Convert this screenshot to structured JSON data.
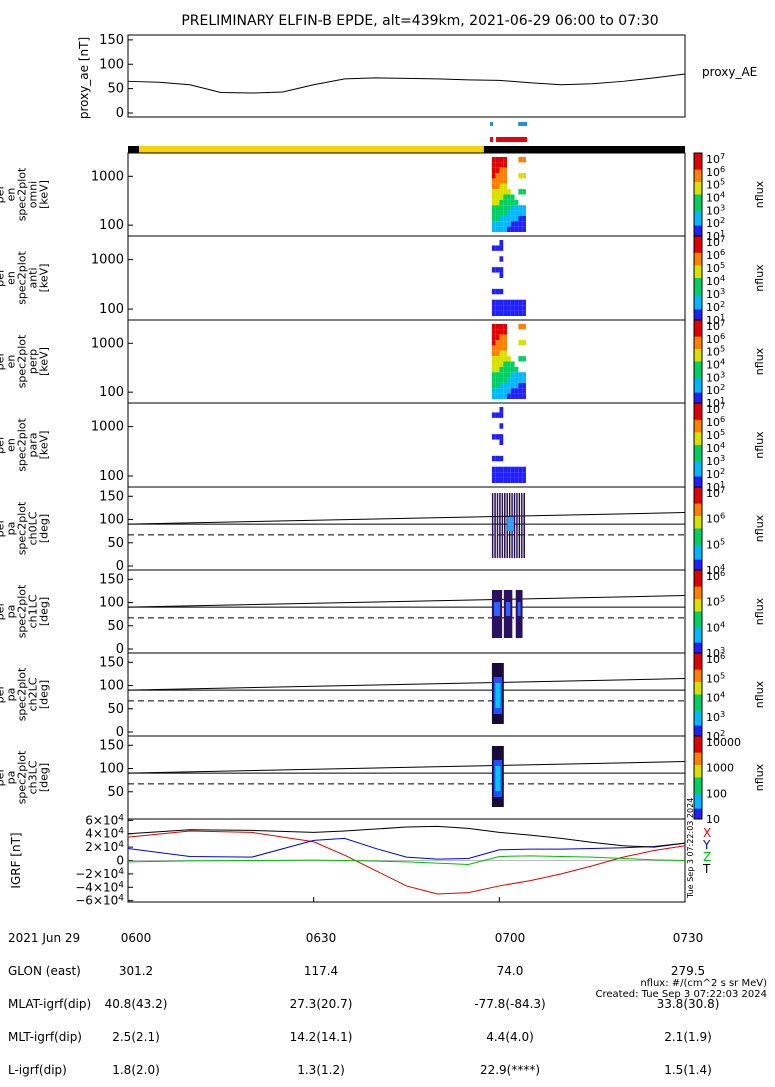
{
  "title": "PRELIMINARY ELFIN-B EPDE, alt=439km, 2021-06-29 06:00 to 07:30",
  "colors": {
    "yellow_bar": "#f2d20c",
    "black_bar": "#000000",
    "red_bar": "#e8000b",
    "blue_bar": "#1f8fe6",
    "bx": "#e00000",
    "by": "#0000e0",
    "bz": "#00c000",
    "bt": "#000000"
  },
  "time_axis": {
    "ticks": [
      "0600",
      "0630",
      "0700",
      "0730"
    ],
    "range_minutes": [
      0,
      90
    ]
  },
  "colorbar_unit": "nflux",
  "panels": [
    {
      "id": "proxy-ae",
      "ylabel": [
        "proxy_ae",
        "[nT]"
      ],
      "ticks": [
        "150",
        "100",
        "50",
        "0"
      ],
      "right_label": "proxy_AE"
    },
    {
      "id": "en-omni",
      "ylabel": [
        "elb",
        "pef",
        "en",
        "spec2plot",
        "omni",
        "[keV]"
      ],
      "ticks": [
        "1000",
        "100"
      ],
      "cbar": [
        "10^7",
        "10^6",
        "10^5",
        "10^4",
        "10^3",
        "10^2",
        "10^1"
      ]
    },
    {
      "id": "en-anti",
      "ylabel": [
        "elb",
        "pef",
        "en",
        "spec2plot",
        "anti",
        "[keV]"
      ],
      "ticks": [
        "1000",
        "100"
      ],
      "cbar": [
        "10^7",
        "10^6",
        "10^5",
        "10^4",
        "10^3",
        "10^2",
        "10^1"
      ]
    },
    {
      "id": "en-perp",
      "ylabel": [
        "elb",
        "pef",
        "en",
        "spec2plot",
        "perp",
        "[keV]"
      ],
      "ticks": [
        "1000",
        "100"
      ],
      "cbar": [
        "10^7",
        "10^6",
        "10^5",
        "10^4",
        "10^3",
        "10^2",
        "10^1"
      ]
    },
    {
      "id": "en-para",
      "ylabel": [
        "elb",
        "pef",
        "en",
        "spec2plot",
        "para",
        "[keV]"
      ],
      "ticks": [
        "1000",
        "100"
      ],
      "cbar": [
        "10^7",
        "10^6",
        "10^5",
        "10^4",
        "10^3",
        "10^2",
        "10^1"
      ]
    },
    {
      "id": "pa-ch0",
      "ylabel": [
        "elb",
        "pef",
        "pa",
        "spec2plot",
        "ch0LC",
        "[deg]"
      ],
      "ticks": [
        "150",
        "100",
        "50",
        "0"
      ],
      "cbar": [
        "10^7",
        "10^6",
        "10^5",
        "10^4"
      ]
    },
    {
      "id": "pa-ch1",
      "ylabel": [
        "elb",
        "pef",
        "pa",
        "spec2plot",
        "ch1LC",
        "[deg]"
      ],
      "ticks": [
        "150",
        "100",
        "50",
        "0"
      ],
      "cbar": [
        "10^6",
        "10^5",
        "10^4",
        "10^3"
      ]
    },
    {
      "id": "pa-ch2",
      "ylabel": [
        "elb",
        "pef",
        "pa",
        "spec2plot",
        "ch2LC",
        "[deg]"
      ],
      "ticks": [
        "150",
        "100",
        "50",
        "0"
      ],
      "cbar": [
        "10^6",
        "10^5",
        "10^4",
        "10^3",
        "10^2"
      ]
    },
    {
      "id": "pa-ch3",
      "ylabel": [
        "elb",
        "pef",
        "pa",
        "spec2plot",
        "ch3LC",
        "[deg]"
      ],
      "ticks": [
        "150",
        "100",
        "50"
      ],
      "cbar": [
        "10000",
        "1000",
        "100",
        "10"
      ]
    },
    {
      "id": "igrf",
      "ylabel": [
        "IGRF",
        "[nT]"
      ],
      "ticks": [
        "6×10^4",
        "4×10^4",
        "2×10^4",
        "0",
        "−2×10^4",
        "−4×10^4",
        "−6×10^4"
      ],
      "legend": [
        "X",
        "Y",
        "Z",
        "T"
      ]
    }
  ],
  "chart_data": {
    "type": "line",
    "title": "PRELIMINARY ELFIN-B EPDE, alt=439km, 2021-06-29 06:00 to 07:30",
    "x_unit": "minutes after 06:00",
    "proxy_ae": {
      "ylim": [
        0,
        150
      ],
      "x": [
        0,
        5,
        10,
        15,
        20,
        25,
        30,
        35,
        40,
        45,
        50,
        55,
        60,
        65,
        70,
        75,
        80,
        85,
        90
      ],
      "values": [
        65,
        63,
        58,
        42,
        41,
        43,
        58,
        70,
        72,
        71,
        70,
        68,
        67,
        62,
        58,
        60,
        65,
        72,
        80
      ]
    },
    "science_zone_bars": {
      "yellow": [
        0,
        57.5
      ],
      "black": [
        57.5,
        90
      ],
      "red": [
        58.5,
        64.5
      ],
      "blue": [
        58.5,
        64.5
      ]
    },
    "loss_cone_deg": {
      "solid_start": 90,
      "solid_end": 115,
      "dashed": 67,
      "solid_lower": 90
    },
    "igrf": {
      "ylim": [
        -60000,
        60000
      ],
      "x": [
        0,
        10,
        20,
        30,
        35,
        40,
        45,
        50,
        55,
        60,
        65,
        70,
        75,
        80,
        85,
        90
      ],
      "series": [
        {
          "name": "X",
          "values": [
            35000,
            44000,
            42000,
            28000,
            8000,
            -15000,
            -38000,
            -50000,
            -48000,
            -38000,
            -30000,
            -20000,
            -8000,
            5000,
            15000,
            22000
          ]
        },
        {
          "name": "Y",
          "values": [
            18000,
            6000,
            5000,
            30000,
            33000,
            18000,
            5000,
            2000,
            3000,
            16000,
            17000,
            17000,
            18000,
            19000,
            21000,
            26000
          ]
        },
        {
          "name": "Z",
          "values": [
            -2000,
            -500,
            0,
            500,
            0,
            -1000,
            -2000,
            -4000,
            -6000,
            6000,
            7000,
            6000,
            5000,
            3000,
            1000,
            0
          ]
        },
        {
          "name": "T",
          "values": [
            40000,
            46000,
            45000,
            42000,
            44000,
            47000,
            50000,
            51000,
            48000,
            42000,
            38000,
            33000,
            27000,
            22000,
            20000,
            26000
          ]
        }
      ]
    }
  },
  "footer": {
    "row_labels": [
      "2021 Jun 29",
      "GLON (east)",
      "MLAT-igrf(dip)",
      "MLT-igrf(dip)",
      "L-igrf(dip)"
    ],
    "columns": [
      {
        "time": "0600",
        "values": [
          "301.2",
          "40.8(43.2)",
          "2.5(2.1)",
          "1.8(2.0)"
        ]
      },
      {
        "time": "0630",
        "values": [
          "117.4",
          "27.3(20.7)",
          "14.2(14.1)",
          "1.3(1.2)"
        ]
      },
      {
        "time": "0700",
        "values": [
          "74.0",
          "-77.8(-84.3)",
          "4.4(4.0)",
          "22.9(****)"
        ]
      },
      {
        "time": "0730",
        "values": [
          "279.5",
          "33.8(30.8)",
          "2.1(1.9)",
          "1.5(1.4)"
        ]
      }
    ],
    "note_units": "nflux: #/(cm^2 s sr MeV)",
    "note_created": "Created: Tue Sep  3 07:22:03 2024",
    "vertical_stamp": "Tue Sep  3 07:22:03 2024"
  }
}
